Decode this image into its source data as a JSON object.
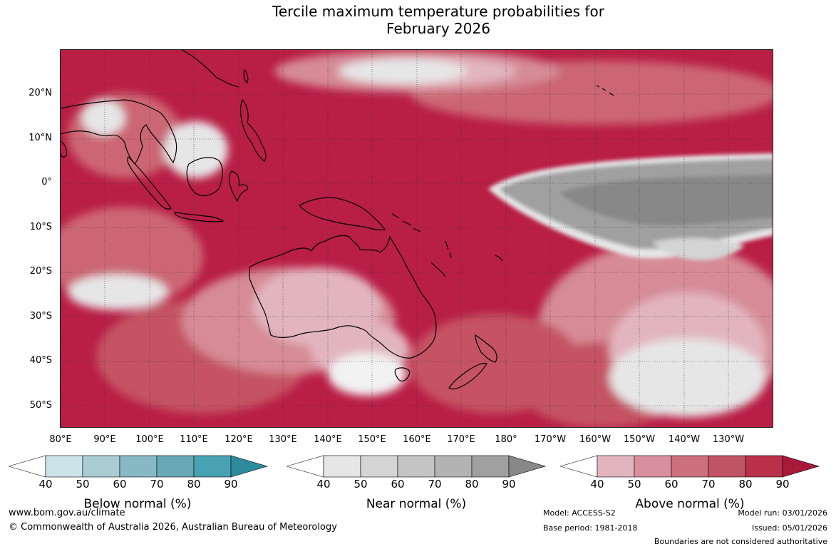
{
  "title_line1": "Tercile maximum temperature probabilities for",
  "title_line2": "February 2026",
  "map": {
    "lat_labels": [
      "20°N",
      "10°N",
      "0°",
      "10°S",
      "20°S",
      "30°S",
      "40°S",
      "50°S"
    ],
    "lon_labels": [
      "80°E",
      "90°E",
      "100°E",
      "110°E",
      "120°E",
      "130°E",
      "140°E",
      "150°E",
      "160°E",
      "170°E",
      "180°",
      "170°W",
      "160°W",
      "150°W",
      "140°W",
      "130°W"
    ]
  },
  "colorbars": {
    "below": {
      "label": "Below normal (%)",
      "ticks": [
        "40",
        "50",
        "60",
        "70",
        "80",
        "90"
      ],
      "colors": [
        "#ffffff",
        "#cce3e9",
        "#a9cdd3",
        "#87b9c4",
        "#68a9b6",
        "#48a2b2",
        "#2e8b9c"
      ]
    },
    "near": {
      "label": "Near normal (%)",
      "ticks": [
        "40",
        "50",
        "60",
        "70",
        "80",
        "90"
      ],
      "colors": [
        "#ffffff",
        "#e6e6e6",
        "#d4d4d4",
        "#c4c4c4",
        "#b3b3b3",
        "#a0a0a0",
        "#888888"
      ]
    },
    "above": {
      "label": "Above normal (%)",
      "ticks": [
        "40",
        "50",
        "60",
        "70",
        "80",
        "90"
      ],
      "colors": [
        "#ffffff",
        "#e2b5be",
        "#d8909c",
        "#cc707e",
        "#c05464",
        "#b93149",
        "#a8193a"
      ]
    }
  },
  "footer": {
    "url": "www.bom.gov.au/climate",
    "copyright": "© Commonwealth of Australia 2026, Australian Bureau of Meteorology",
    "model": "Model: ACCESS-S2",
    "base_period": "Base period: 1981-2018",
    "model_run": "Model run: 03/01/2026",
    "issued": "Issued: 05/01/2026",
    "disclaimer": "Boundaries are not considered authoritative"
  }
}
